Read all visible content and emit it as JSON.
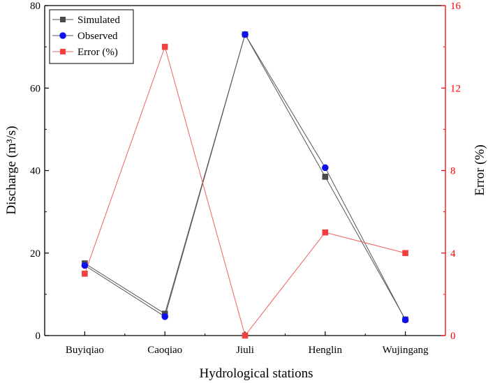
{
  "chart_data": {
    "type": "line",
    "categories": [
      "Buyiqiao",
      "Caoqiao",
      "Jiuli",
      "Henglin",
      "Wujingang"
    ],
    "xlabel": "Hydrological stations",
    "ylabel_left": "Discharge (m³/s)",
    "ylabel_right": "Error (%)",
    "ylim_left": [
      0,
      80
    ],
    "ylim_right": [
      0,
      16
    ],
    "yticks_left": [
      0,
      20,
      40,
      60,
      80
    ],
    "yticks_right": [
      0,
      4,
      8,
      12,
      16
    ],
    "grid": false,
    "legend_position": "top-left",
    "series": [
      {
        "name": "Simulated",
        "axis": "left",
        "marker": "square",
        "color": "#4a4a4a",
        "line_color": "#555555",
        "values": [
          17.5,
          5.3,
          73.0,
          38.5,
          3.9
        ]
      },
      {
        "name": "Observed",
        "axis": "left",
        "marker": "circle",
        "color": "#1010ee",
        "line_color": "#555555",
        "values": [
          17.0,
          4.6,
          73.0,
          40.7,
          3.8
        ]
      },
      {
        "name": "Error (%)",
        "axis": "right",
        "marker": "square",
        "color": "#f04040",
        "line_color": "#f06060",
        "values": [
          3.0,
          14.0,
          0.0,
          5.0,
          4.0
        ]
      }
    ],
    "colors": {
      "right_axis": "#ff0000",
      "left_axis": "#000000"
    }
  }
}
